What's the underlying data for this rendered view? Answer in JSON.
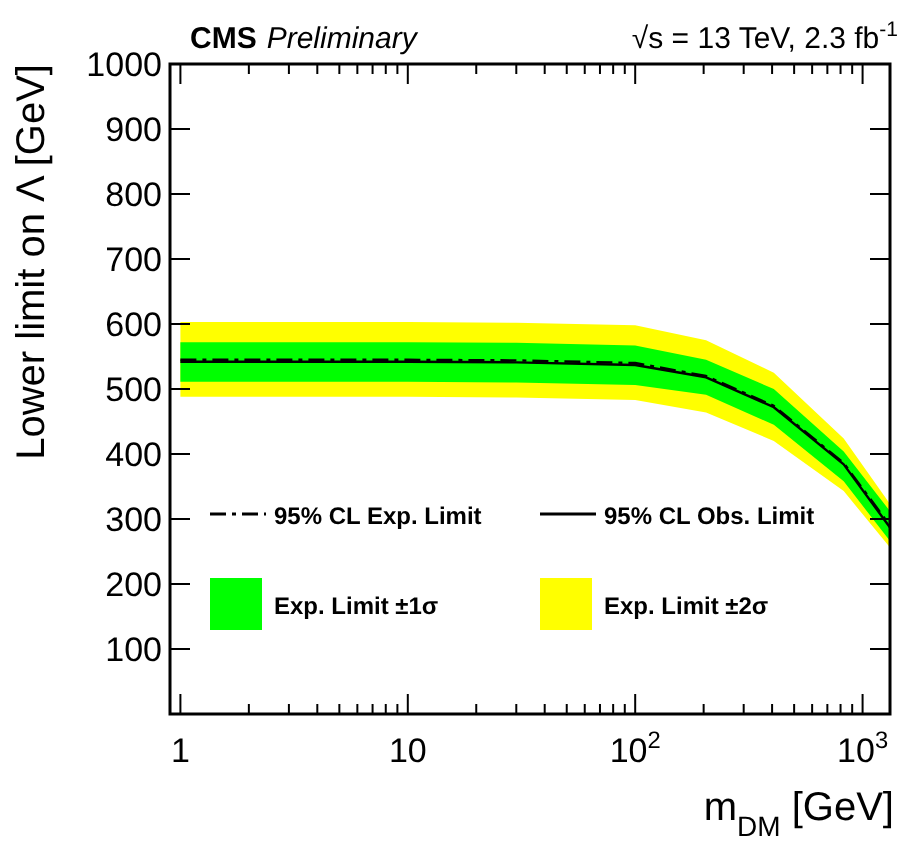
{
  "chart_data": {
    "type": "line",
    "title": "CMS",
    "subtitle": "Preliminary",
    "annotations": [
      "√s = 13 TeV, 2.3 fb$^{-1}$"
    ],
    "xlabel": "m$_{DM}$ [GeV]",
    "ylabel": "Lower limit on Λ [GeV]",
    "log": "x",
    "xlim": [
      0.9,
      1320
    ],
    "ylim": [
      0,
      1000
    ],
    "xticks": [
      {
        "value": 1,
        "label": "1"
      },
      {
        "value": 2,
        "label": null
      },
      {
        "value": 3,
        "label": null
      },
      {
        "value": 4,
        "label": null
      },
      {
        "value": 5,
        "label": null
      },
      {
        "value": 6,
        "label": null
      },
      {
        "value": 7,
        "label": null
      },
      {
        "value": 8,
        "label": null
      },
      {
        "value": 9,
        "label": null
      },
      {
        "value": 10,
        "label": "10"
      },
      {
        "value": 20,
        "label": null
      },
      {
        "value": 30,
        "label": null
      },
      {
        "value": 40,
        "label": null
      },
      {
        "value": 50,
        "label": null
      },
      {
        "value": 60,
        "label": null
      },
      {
        "value": 70,
        "label": null
      },
      {
        "value": 80,
        "label": null
      },
      {
        "value": 90,
        "label": null
      },
      {
        "value": 100,
        "label": "10$^{2}$"
      },
      {
        "value": 200,
        "label": null
      },
      {
        "value": 300,
        "label": null
      },
      {
        "value": 400,
        "label": null
      },
      {
        "value": 500,
        "label": null
      },
      {
        "value": 600,
        "label": null
      },
      {
        "value": 700,
        "label": null
      },
      {
        "value": 800,
        "label": null
      },
      {
        "value": 900,
        "label": null
      },
      {
        "value": 1000,
        "label": "10$^{3}$"
      }
    ],
    "yticks": [
      100,
      200,
      300,
      400,
      500,
      600,
      700,
      800,
      900,
      1000
    ],
    "x": [
      1,
      10,
      30,
      100,
      205,
      407,
      826,
      1320
    ],
    "legend": "bottom",
    "grid": false,
    "marker": "none",
    "series": [
      {
        "name": "95% CL Exp. Limit",
        "type": "line",
        "line_style": "dashed",
        "color": "#000000",
        "values": [
          545,
          545,
          544,
          540,
          520,
          474,
          386,
          290
        ]
      },
      {
        "name": "95% CL Obs. Limit",
        "type": "line",
        "line_style": "solid",
        "color": "#000000",
        "values": [
          542,
          542,
          541,
          537,
          518,
          472,
          384,
          287
        ]
      },
      {
        "name": "Exp. Limit ±1σ",
        "type": "line",
        "color": "#00ff00",
        "values": [
          null,
          null,
          null,
          null,
          null,
          null,
          null,
          null
        ],
        "lower": [
          511,
          511,
          510,
          506,
          491,
          445,
          358,
          266
        ],
        "upper": [
          572,
          572,
          571,
          567,
          545,
          500,
          404,
          312
        ]
      },
      {
        "name": "Exp. Limit ±2σ",
        "type": "line",
        "color": "#ffff00",
        "values": [
          null,
          null,
          null,
          null,
          null,
          null,
          null,
          null
        ],
        "lower": [
          488,
          488,
          487,
          483,
          464,
          420,
          343,
          256
        ],
        "upper": [
          603,
          603,
          602,
          598,
          575,
          525,
          424,
          323
        ]
      }
    ]
  }
}
